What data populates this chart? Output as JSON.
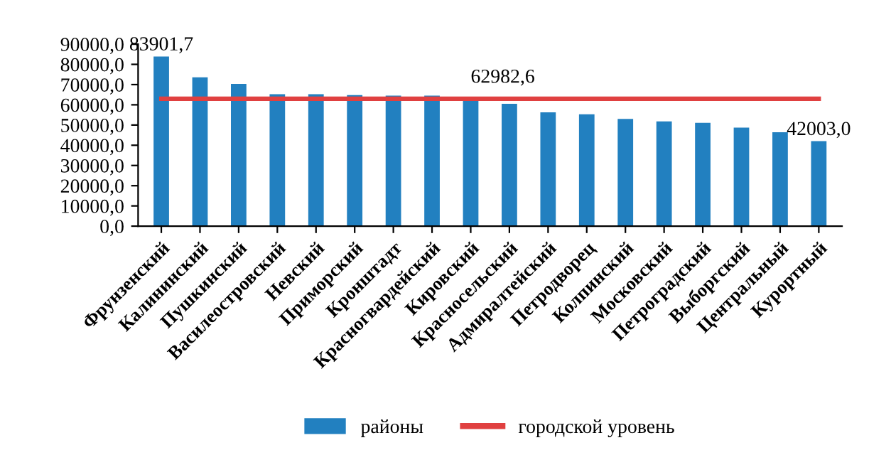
{
  "chart_data": {
    "type": "bar",
    "categories": [
      "Фрунзенский",
      "Калининский",
      "Пушкинский",
      "Василеостровский",
      "Невский",
      "Приморский",
      "Кронштадт",
      "Красногвардейский",
      "Кировский",
      "Красносельский",
      "Адмиралтейский",
      "Петродворец",
      "Колпинский",
      "Московский",
      "Петроградский",
      "Выборгский",
      "Центральный",
      "Курортный"
    ],
    "series": [
      {
        "name": "районы",
        "color": "#2280c0",
        "values": [
          83901.7,
          73600,
          70300,
          65200,
          65200,
          64800,
          64500,
          64500,
          62000,
          60500,
          56300,
          55300,
          53000,
          51800,
          51100,
          48700,
          46400,
          42003.0
        ],
        "value_labels": [
          "83901,7",
          null,
          null,
          null,
          null,
          null,
          null,
          null,
          null,
          null,
          null,
          null,
          null,
          null,
          null,
          null,
          null,
          "42003,0"
        ]
      },
      {
        "name": "городской уровень",
        "type": "line",
        "color": "#e04040",
        "values": [
          62982.6,
          62982.6,
          62982.6,
          62982.6,
          62982.6,
          62982.6,
          62982.6,
          62982.6,
          62982.6,
          62982.6,
          62982.6,
          62982.6,
          62982.6,
          62982.6,
          62982.6,
          62982.6,
          62982.6,
          62982.6
        ],
        "value_labels": [
          null,
          null,
          null,
          null,
          null,
          null,
          null,
          null,
          null,
          null,
          null,
          null,
          null,
          null,
          null,
          null,
          null,
          null
        ]
      }
    ],
    "annotations": [
      {
        "text": "62982,6",
        "x": "Кировский",
        "y": 62982.6
      }
    ],
    "ylim": [
      0,
      90000
    ],
    "yticks": [
      {
        "value": 0,
        "label": "0,0"
      },
      {
        "value": 10000,
        "label": "10000,0"
      },
      {
        "value": 20000,
        "label": "20000,0"
      },
      {
        "value": 30000,
        "label": "30000,0"
      },
      {
        "value": 40000,
        "label": "40000,0"
      },
      {
        "value": 50000,
        "label": "50000,0"
      },
      {
        "value": 60000,
        "label": "60000,0"
      },
      {
        "value": 70000,
        "label": "70000,0"
      },
      {
        "value": 80000,
        "label": "80000,0"
      },
      {
        "value": 90000,
        "label": "90000,0"
      }
    ],
    "grid": false,
    "legend": "bottom",
    "marker": "none",
    "line_style": "solid"
  }
}
